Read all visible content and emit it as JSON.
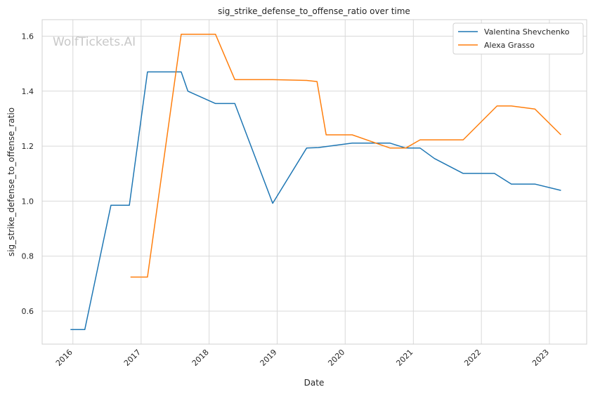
{
  "watermark": "WolfTickets.AI",
  "chart_data": {
    "type": "line",
    "title": "sig_strike_defense_to_offense_ratio over time",
    "xlabel": "Date",
    "ylabel": "sig_strike_defense_to_offense_ratio",
    "xlim": [
      "2015-07-20",
      "2023-07-20"
    ],
    "ylim": [
      0.48,
      1.66
    ],
    "x_ticks": [
      "2016",
      "2017",
      "2018",
      "2019",
      "2020",
      "2021",
      "2022",
      "2023"
    ],
    "y_ticks": [
      "0.6",
      "0.8",
      "1.0",
      "1.2",
      "1.4",
      "1.6"
    ],
    "grid": true,
    "legend_position": "top-right",
    "series": [
      {
        "name": "Valentina Shevchenko",
        "color": "#1f77b4",
        "points": [
          [
            "2015-12-19",
            0.533
          ],
          [
            "2016-03-05",
            0.533
          ],
          [
            "2016-07-23",
            0.985
          ],
          [
            "2016-10-30",
            0.985
          ],
          [
            "2017-02-04",
            1.47
          ],
          [
            "2017-08-04",
            1.47
          ],
          [
            "2017-09-09",
            1.4
          ],
          [
            "2018-02-04",
            1.355
          ],
          [
            "2018-05-19",
            1.355
          ],
          [
            "2018-12-08",
            0.992
          ],
          [
            "2019-06-08",
            1.193
          ],
          [
            "2019-08-10",
            1.195
          ],
          [
            "2020-02-08",
            1.211
          ],
          [
            "2020-08-29",
            1.211
          ],
          [
            "2020-11-21",
            1.193
          ],
          [
            "2021-02-06",
            1.193
          ],
          [
            "2021-04-24",
            1.155
          ],
          [
            "2021-09-25",
            1.101
          ],
          [
            "2022-03-12",
            1.101
          ],
          [
            "2022-06-11",
            1.062
          ],
          [
            "2022-10-15",
            1.062
          ],
          [
            "2023-03-04",
            1.039
          ]
        ]
      },
      {
        "name": "Alexa Grasso",
        "color": "#ff7f0e",
        "points": [
          [
            "2016-11-05",
            0.724
          ],
          [
            "2017-02-04",
            0.724
          ],
          [
            "2017-08-04",
            1.607
          ],
          [
            "2018-02-04",
            1.607
          ],
          [
            "2018-05-19",
            1.442
          ],
          [
            "2018-12-08",
            1.442
          ],
          [
            "2019-06-08",
            1.439
          ],
          [
            "2019-08-03",
            1.435
          ],
          [
            "2019-09-21",
            1.241
          ],
          [
            "2020-02-08",
            1.241
          ],
          [
            "2020-08-29",
            1.193
          ],
          [
            "2020-11-21",
            1.193
          ],
          [
            "2021-02-06",
            1.223
          ],
          [
            "2021-09-25",
            1.223
          ],
          [
            "2022-03-26",
            1.346
          ],
          [
            "2022-06-11",
            1.346
          ],
          [
            "2022-10-15",
            1.335
          ],
          [
            "2023-03-04",
            1.241
          ]
        ]
      }
    ]
  }
}
